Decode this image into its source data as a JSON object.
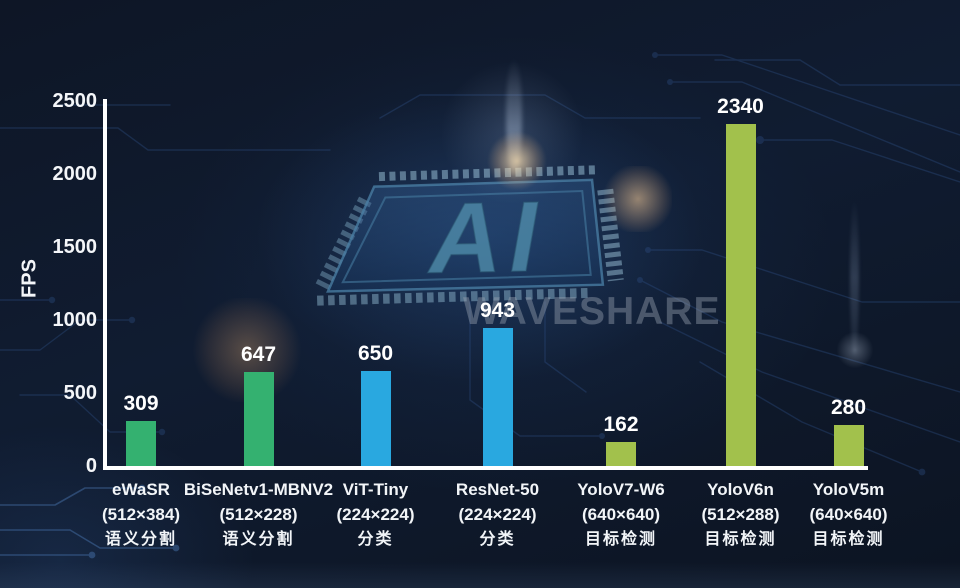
{
  "page": {
    "watermark": "WAVESHARE",
    "chip_label": "AI"
  },
  "colors": {
    "background": "#0e1828",
    "axis": "#ffffff",
    "text": "#f4f6f9",
    "green": "#34b170",
    "blue": "#29a8e0",
    "olive": "#a2c14c",
    "watermark": "#9aa4b2"
  },
  "chart_data": {
    "type": "bar",
    "title": "",
    "xlabel": "",
    "ylabel": "FPS",
    "ylim": [
      0,
      2500
    ],
    "yticks": [
      0,
      500,
      1000,
      1500,
      2000,
      2500
    ],
    "grid": false,
    "legend": false,
    "categories": [
      "eWaSR",
      "BiSeNetv1-MBNV2",
      "ViT-Tiny",
      "ResNet-50",
      "YoloV7-W6",
      "YoloV6n",
      "YoloV5m"
    ],
    "category_resolutions": [
      "(512×384)",
      "(512×228)",
      "(224×224)",
      "(224×224)",
      "(640×640)",
      "(512×288)",
      "(640×640)"
    ],
    "category_tasks": [
      "语义分割",
      "语义分割",
      "分类",
      "分类",
      "目标检测",
      "目标检测",
      "目标检测"
    ],
    "values": [
      309,
      647,
      650,
      943,
      162,
      2340,
      280
    ],
    "bar_colors": [
      "#34b170",
      "#34b170",
      "#29a8e0",
      "#29a8e0",
      "#a2c14c",
      "#a2c14c",
      "#a2c14c"
    ]
  }
}
